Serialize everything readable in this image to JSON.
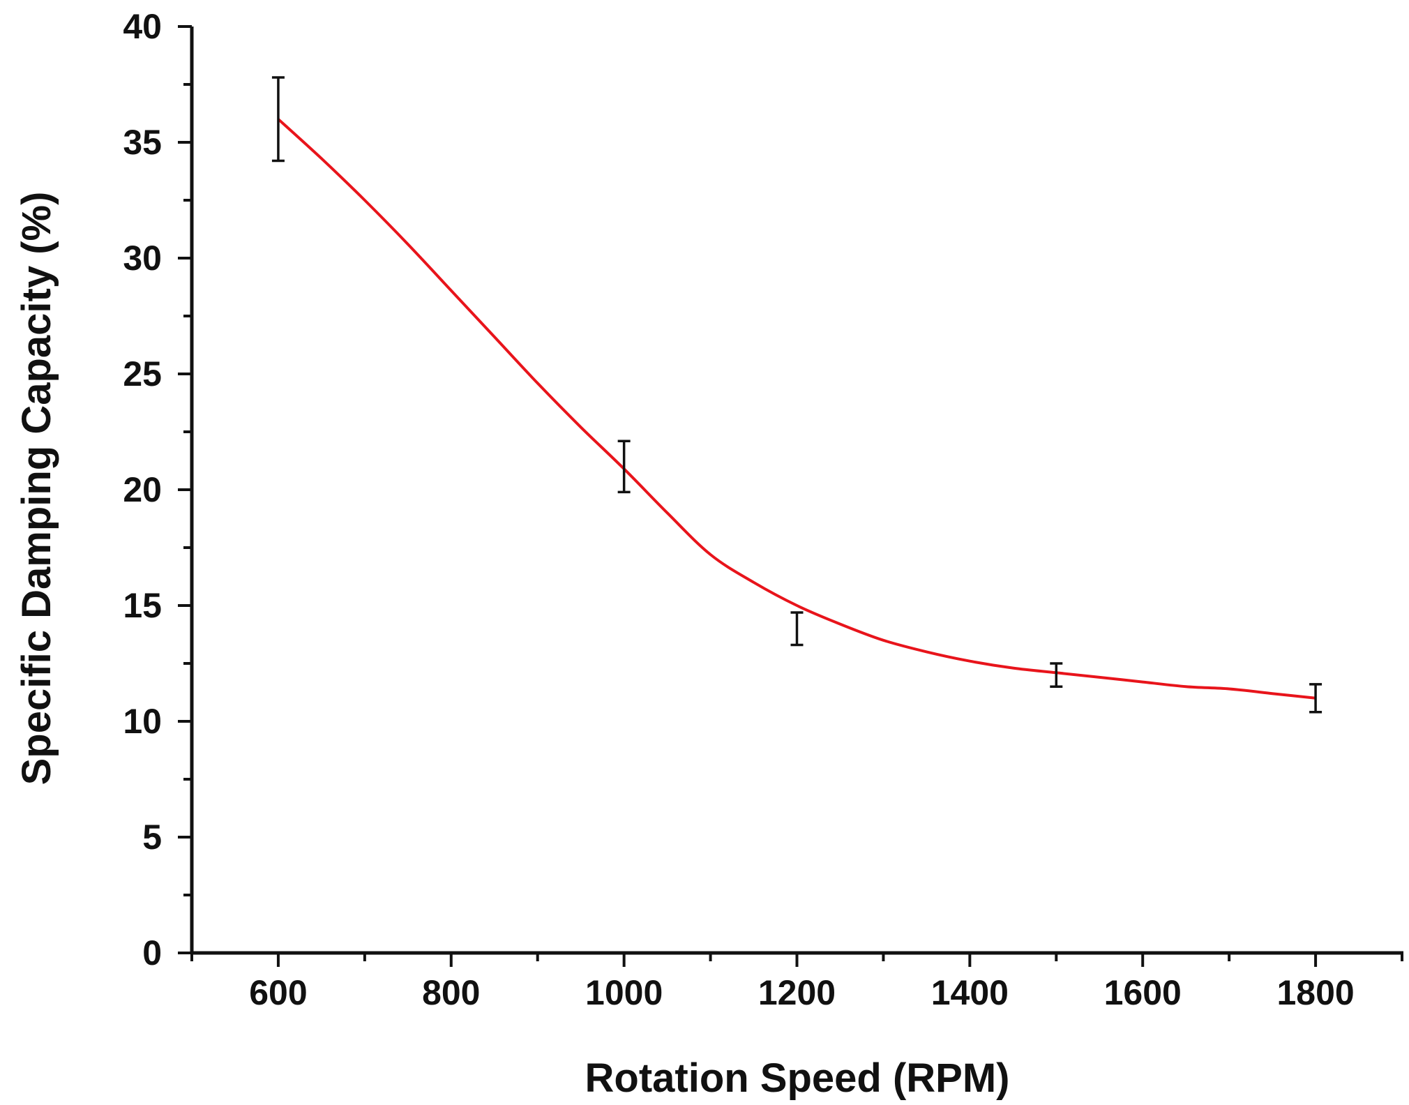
{
  "chart_data": {
    "type": "line",
    "title": "",
    "xlabel": "Rotation Speed (RPM)",
    "ylabel": "Specific Damping Capacity (%)",
    "xlim": [
      500,
      1900
    ],
    "ylim": [
      0,
      40
    ],
    "x_ticks": [
      600,
      800,
      1000,
      1200,
      1400,
      1600,
      1800
    ],
    "x_minor_step": 100,
    "y_ticks": [
      0,
      5,
      10,
      15,
      20,
      25,
      30,
      35,
      40
    ],
    "y_minor_step": 2.5,
    "grid": false,
    "series": [
      {
        "name": "Specific Damping Capacity",
        "x": [
          600,
          1000,
          1200,
          1500,
          1800
        ],
        "y": [
          36,
          21,
          14,
          12,
          11
        ],
        "error": [
          1.8,
          1.1,
          0.7,
          0.5,
          0.6
        ],
        "fit_curve": {
          "color": "#e8141b",
          "x": [
            600,
            650,
            700,
            750,
            800,
            850,
            900,
            950,
            1000,
            1050,
            1100,
            1150,
            1200,
            1250,
            1300,
            1350,
            1400,
            1450,
            1500,
            1550,
            1600,
            1650,
            1700,
            1750,
            1800
          ],
          "y": [
            36.0,
            34.3,
            32.5,
            30.6,
            28.6,
            26.6,
            24.6,
            22.7,
            20.9,
            19.0,
            17.2,
            16.0,
            15.0,
            14.2,
            13.5,
            13.0,
            12.6,
            12.3,
            12.1,
            11.9,
            11.7,
            11.5,
            11.4,
            11.2,
            11.0
          ]
        }
      }
    ]
  }
}
